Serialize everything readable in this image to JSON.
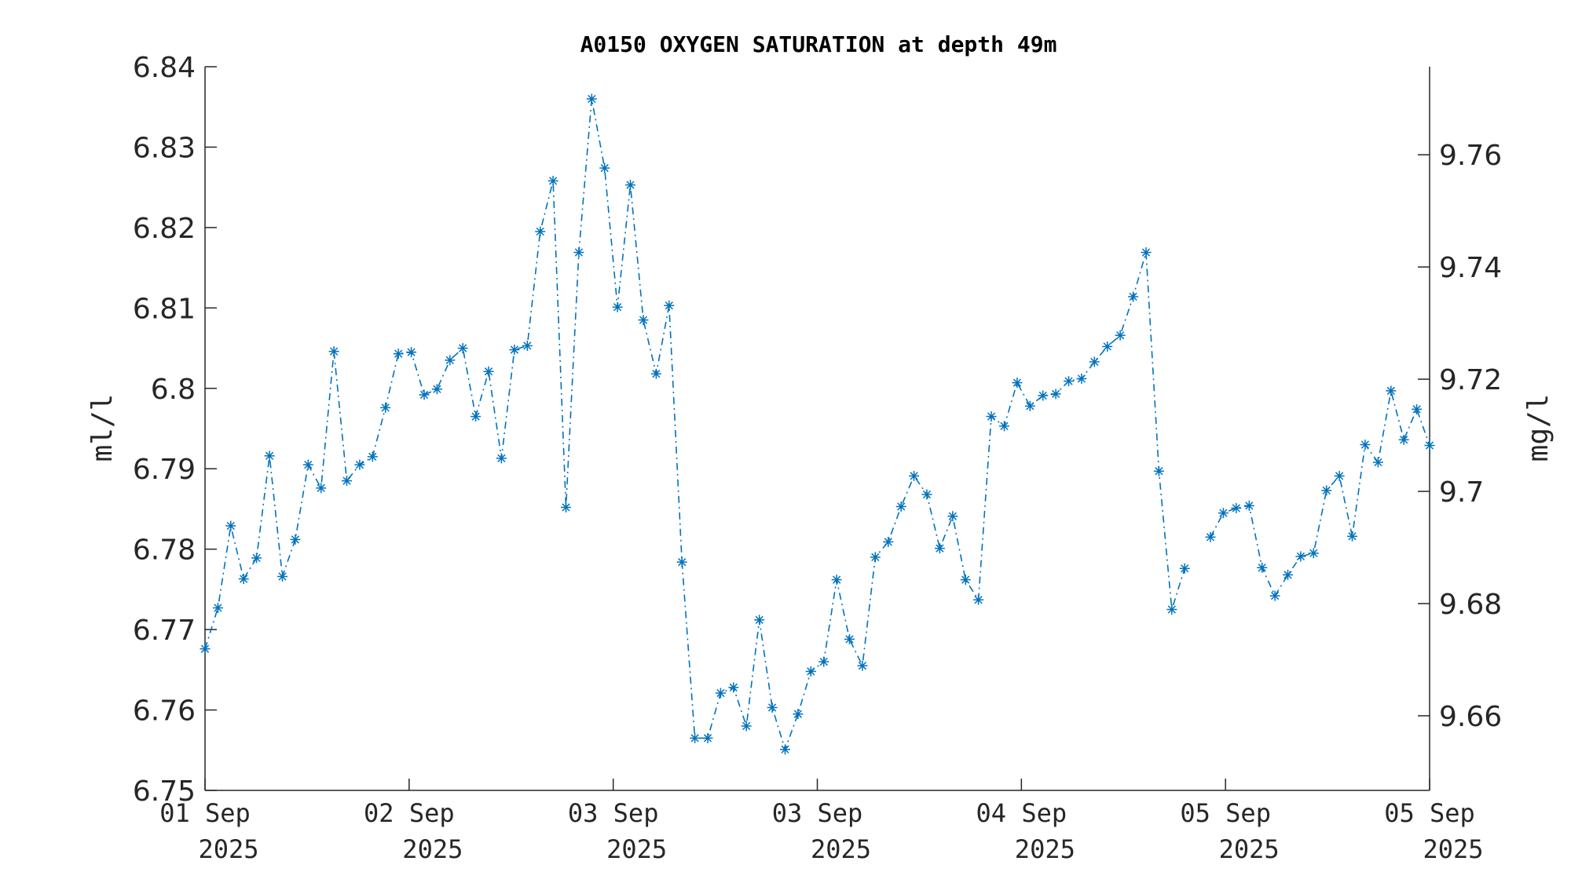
{
  "chart_data": {
    "type": "line",
    "title": "A0150 OXYGEN SATURATION at depth 49m",
    "ylabel": "ml/l",
    "y2label": "mg/l",
    "ylim": [
      6.75,
      6.84
    ],
    "y2lim": [
      9.6467,
      9.7757
    ],
    "yticks": [
      "6.75",
      "6.76",
      "6.77",
      "6.78",
      "6.79",
      "6.8",
      "6.81",
      "6.82",
      "6.83",
      "6.84"
    ],
    "y2ticks": [
      "9.66",
      "9.68",
      "9.7",
      "9.72",
      "9.74",
      "9.76"
    ],
    "xticks": [
      {
        "day": "01 Sep",
        "year": "2025"
      },
      {
        "day": "02 Sep",
        "year": "2025"
      },
      {
        "day": "03 Sep",
        "year": "2025"
      },
      {
        "day": "03 Sep",
        "year": "2025"
      },
      {
        "day": "04 Sep",
        "year": "2025"
      },
      {
        "day": "05 Sep",
        "year": "2025"
      },
      {
        "day": "05 Sep",
        "year": "2025"
      }
    ],
    "marker": "asterisk",
    "line_style": "dash-dot",
    "series_color": "#0072bd",
    "grid": false,
    "series": [
      {
        "segments": [
          [
            6.7676,
            6.7727,
            6.7829,
            6.7763,
            6.7789,
            6.7916,
            6.7766,
            6.7812,
            6.7905,
            6.7876,
            6.8046,
            6.7885,
            6.7905,
            6.7915,
            6.7976,
            6.8043,
            6.8045,
            6.7992,
            6.7999,
            6.8035,
            6.805,
            6.7965,
            6.8021,
            6.7913,
            6.8048,
            6.8053,
            6.8195,
            6.8258,
            6.7852,
            6.8169,
            6.836,
            6.8274,
            6.8101,
            6.8253,
            6.8085,
            6.8018,
            6.8103,
            6.7784,
            6.7565,
            6.7565,
            6.7621,
            6.7628,
            6.758,
            6.7712,
            6.7603,
            6.7551,
            6.7595,
            6.7648,
            6.766,
            6.7762,
            6.7688,
            6.7655,
            6.779,
            6.7809,
            6.7853,
            6.7891,
            6.7868,
            6.7801,
            6.7841,
            6.7762,
            6.7737,
            6.7965,
            6.7953,
            6.8007,
            6.7978,
            6.7991,
            6.7993,
            6.8009,
            6.8012,
            6.8033,
            6.8052,
            6.8066,
            6.8114,
            6.8169,
            6.7897,
            6.7725,
            6.7776
          ],
          [
            6.7815,
            6.7845,
            6.7851,
            6.7854,
            6.7777,
            6.7742,
            6.7768,
            6.7791,
            6.7795,
            6.7873,
            6.7891,
            6.7816,
            6.793,
            6.7908,
            6.7997,
            6.7936,
            6.7974,
            6.7929
          ]
        ]
      }
    ]
  }
}
